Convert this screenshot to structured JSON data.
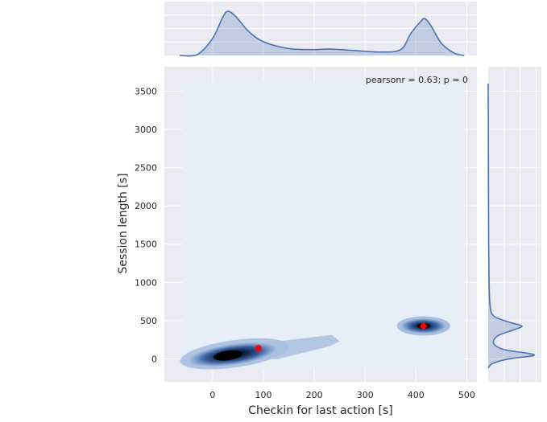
{
  "chart_data": {
    "type": "jointplot-kde",
    "xlabel": "Checkin for last action [s]",
    "ylabel": "Session length [s]",
    "annotation": "pearsonr = 0.63; p = 0",
    "xlim": [
      -95,
      520
    ],
    "ylim": [
      -300,
      3820
    ],
    "xticks": [
      0,
      100,
      200,
      300,
      400,
      500
    ],
    "yticks": [
      0,
      500,
      1000,
      1500,
      2000,
      2500,
      3000,
      3500
    ],
    "grid": true,
    "kde_support": {
      "x": [
        -60,
        495
      ],
      "y": [
        -120,
        3620
      ]
    },
    "density_clusters": [
      {
        "x": 30,
        "y": 45,
        "spread_x": 85,
        "spread_y": 60,
        "peak": 1.0
      },
      {
        "x": 415,
        "y": 430,
        "spread_x": 45,
        "spread_y": 45,
        "peak": 0.85
      }
    ],
    "tail": {
      "from": [
        110,
        120
      ],
      "to": [
        250,
        250
      ]
    },
    "highlight_points": [
      {
        "x": 90,
        "y": 140
      },
      {
        "x": 415,
        "y": 430
      }
    ],
    "marginal_x": {
      "points": [
        [
          -65,
          0
        ],
        [
          -30,
          0.02
        ],
        [
          0,
          0.35
        ],
        [
          20,
          0.78
        ],
        [
          30,
          0.9
        ],
        [
          45,
          0.8
        ],
        [
          70,
          0.5
        ],
        [
          100,
          0.28
        ],
        [
          150,
          0.14
        ],
        [
          200,
          0.12
        ],
        [
          230,
          0.13
        ],
        [
          280,
          0.1
        ],
        [
          330,
          0.07
        ],
        [
          370,
          0.12
        ],
        [
          390,
          0.45
        ],
        [
          410,
          0.7
        ],
        [
          418,
          0.75
        ],
        [
          430,
          0.6
        ],
        [
          450,
          0.25
        ],
        [
          475,
          0.05
        ],
        [
          495,
          0
        ]
      ]
    },
    "marginal_y": {
      "points": [
        [
          -120,
          0
        ],
        [
          -60,
          0.1
        ],
        [
          0,
          0.45
        ],
        [
          40,
          0.95
        ],
        [
          70,
          0.88
        ],
        [
          120,
          0.35
        ],
        [
          200,
          0.12
        ],
        [
          300,
          0.2
        ],
        [
          380,
          0.55
        ],
        [
          430,
          0.72
        ],
        [
          480,
          0.45
        ],
        [
          560,
          0.12
        ],
        [
          700,
          0.04
        ],
        [
          1000,
          0.02
        ],
        [
          1500,
          0.01
        ],
        [
          2500,
          0.005
        ],
        [
          3600,
          0
        ]
      ]
    },
    "colors": {
      "line": "#4c72b0",
      "fill": "#4c72b0",
      "panel_bg": "#eaeaf2",
      "kde_bg": "#e6eef8",
      "grid": "#ffffff",
      "point": "#ff0000"
    }
  }
}
